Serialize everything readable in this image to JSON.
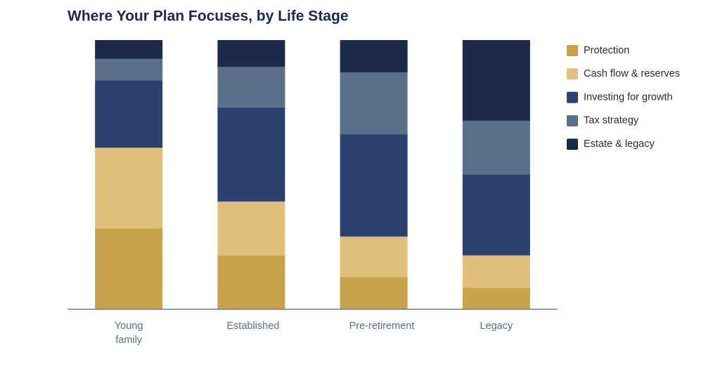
{
  "chart_data": {
    "type": "stacked_bar",
    "title": "Where Your Plan Focuses, by Life Stage",
    "categories": [
      "Young family",
      "Established",
      "Pre-retirement",
      "Legacy"
    ],
    "legend": "right",
    "series": [
      {
        "name": "Protection",
        "color": "#c9a24d",
        "values": [
          30,
          20,
          12,
          8
        ]
      },
      {
        "name": "Cash flow & reserves",
        "color": "#e0c07a",
        "values": [
          30,
          20,
          15,
          12
        ]
      },
      {
        "name": "Investing for growth",
        "color": "#2c4170",
        "values": [
          25,
          35,
          38,
          30
        ]
      },
      {
        "name": "Tax strategy",
        "color": "#5a6f88",
        "values": [
          8,
          15,
          23,
          20
        ]
      },
      {
        "name": "Estate & legacy",
        "color": "#1b2a4a",
        "values": [
          7,
          10,
          12,
          30
        ]
      }
    ]
  }
}
